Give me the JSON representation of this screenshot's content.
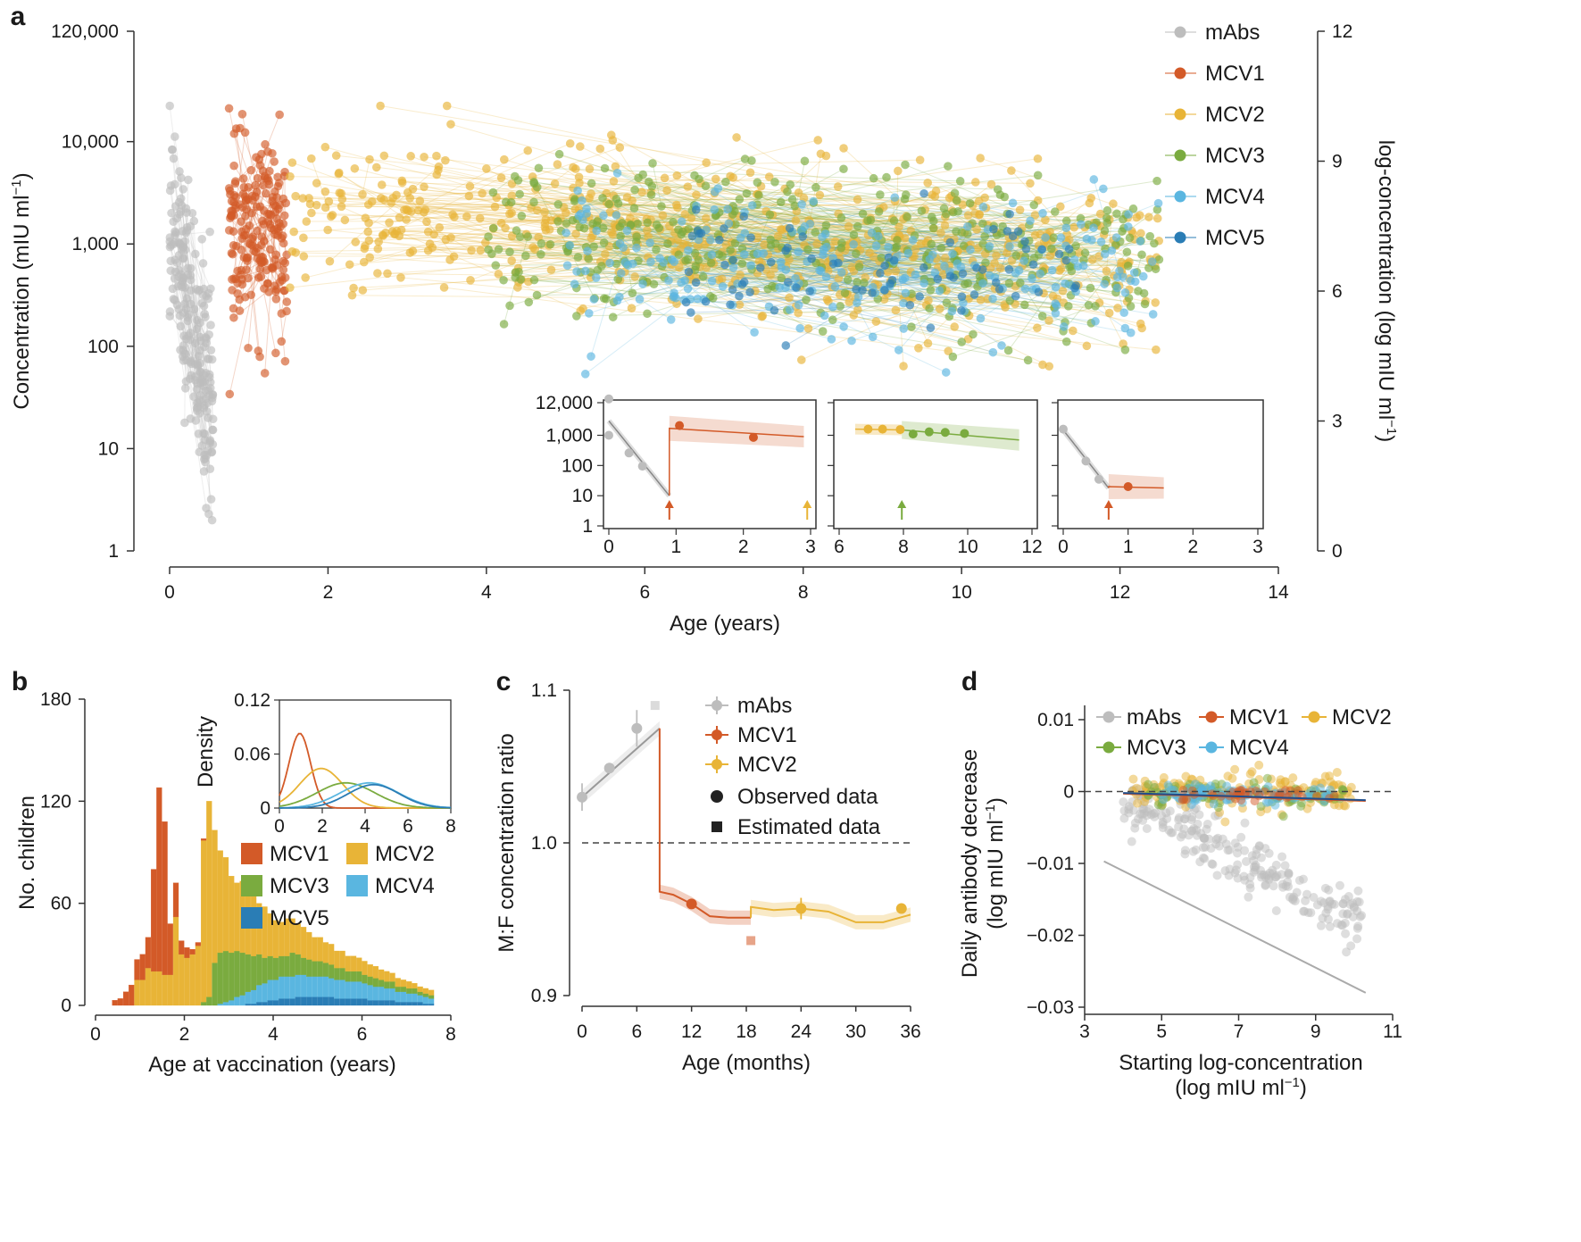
{
  "colors": {
    "mAbs": "#bdbdbd",
    "MCV1": "#d35a28",
    "MCV2": "#e8b437",
    "MCV3": "#7aab3f",
    "MCV4": "#5ab6e0",
    "MCV5": "#2a7db5",
    "axis": "#333333"
  },
  "chart_data": [
    {
      "id": "a",
      "panel_label": "a",
      "type": "scatter",
      "xlabel": "Age (years)",
      "ylabel": "Concentration (mIU ml",
      "ylabel_sup": "−1",
      "ylabel_tail": ")",
      "y2label": "log-concentration (log mIU ml",
      "y2label_sup": "−1",
      "y2label_tail": ")",
      "xlim": [
        0,
        14
      ],
      "xticks": [
        "0",
        "2",
        "4",
        "6",
        "8",
        "10",
        "12",
        "14"
      ],
      "yscale": "log",
      "ylim": [
        1,
        120000
      ],
      "yticks": [
        {
          "v": 1,
          "label": "1"
        },
        {
          "v": 10,
          "label": "10"
        },
        {
          "v": 100,
          "label": "100"
        },
        {
          "v": 1000,
          "label": "1,000"
        },
        {
          "v": 10000,
          "label": "10,000"
        },
        {
          "v": 120000,
          "label": "120,000"
        }
      ],
      "y2ticks": [
        {
          "v": 0,
          "label": "0"
        },
        {
          "v": 3,
          "label": "3"
        },
        {
          "v": 6,
          "label": "6"
        },
        {
          "v": 9,
          "label": "9"
        },
        {
          "v": 12,
          "label": "12"
        }
      ],
      "legend": [
        "mAbs",
        "MCV1",
        "MCV2",
        "MCV3",
        "MCV4",
        "MCV5"
      ],
      "series": [
        {
          "name": "mAbs",
          "x_range": [
            0,
            0.55
          ],
          "log10_center": [
            3.2,
            1.4
          ],
          "log10_spread": 0.55,
          "n": 220
        },
        {
          "name": "MCV1",
          "x_range": [
            0.75,
            1.5
          ],
          "log10_center": [
            3.1,
            3.0
          ],
          "log10_spread": 0.45,
          "n": 200
        },
        {
          "name": "MCV2",
          "x_range": [
            1.5,
            12.5
          ],
          "log10_center": [
            3.3,
            2.8
          ],
          "log10_spread": 0.4,
          "n": 620
        },
        {
          "name": "MCV3",
          "x_range": [
            4.0,
            12.5
          ],
          "log10_center": [
            3.1,
            2.8
          ],
          "log10_spread": 0.38,
          "n": 380
        },
        {
          "name": "MCV4",
          "x_range": [
            5.0,
            12.5
          ],
          "log10_center": [
            2.9,
            2.7
          ],
          "log10_spread": 0.35,
          "n": 230
        },
        {
          "name": "MCV5",
          "x_range": [
            6.5,
            11.5
          ],
          "log10_center": [
            2.8,
            2.6
          ],
          "log10_spread": 0.3,
          "n": 80
        }
      ],
      "insets": [
        {
          "xticks": [
            "0",
            "1",
            "2",
            "3"
          ],
          "xlim": [
            0,
            3
          ],
          "yticks": [
            "1",
            "10",
            "100",
            "1,000",
            "12,000"
          ],
          "points": [
            {
              "s": "mAbs",
              "x": 0,
              "y": 16000
            },
            {
              "s": "mAbs",
              "x": 0,
              "y": 1000
            },
            {
              "s": "mAbs",
              "x": 0.3,
              "y": 260
            },
            {
              "s": "mAbs",
              "x": 0.5,
              "y": 95
            },
            {
              "s": "MCV1",
              "x": 1.05,
              "y": 2100
            },
            {
              "s": "MCV1",
              "x": 2.15,
              "y": 850
            }
          ],
          "arrows": [
            {
              "s": "MCV1",
              "x": 0.9
            },
            {
              "s": "MCV2",
              "x": 2.95
            }
          ]
        },
        {
          "xticks": [
            "6",
            "8",
            "10",
            "12"
          ],
          "xlim": [
            6,
            12
          ],
          "points": [
            {
              "s": "MCV2",
              "x": 6.9,
              "y": 1600
            },
            {
              "s": "MCV2",
              "x": 7.35,
              "y": 1600
            },
            {
              "s": "MCV2",
              "x": 7.9,
              "y": 1550
            },
            {
              "s": "MCV3",
              "x": 8.3,
              "y": 1100
            },
            {
              "s": "MCV3",
              "x": 8.8,
              "y": 1300
            },
            {
              "s": "MCV3",
              "x": 9.3,
              "y": 1250
            },
            {
              "s": "MCV3",
              "x": 9.9,
              "y": 1150
            }
          ],
          "arrows": [
            {
              "s": "MCV3",
              "x": 7.95
            }
          ]
        },
        {
          "xticks": [
            "0",
            "1",
            "2",
            "3"
          ],
          "xlim": [
            0,
            3
          ],
          "points": [
            {
              "s": "mAbs",
              "x": 0,
              "y": 1600
            },
            {
              "s": "mAbs",
              "x": 0.35,
              "y": 140
            },
            {
              "s": "mAbs",
              "x": 0.55,
              "y": 35
            },
            {
              "s": "MCV1",
              "x": 1.0,
              "y": 20
            }
          ],
          "arrows": [
            {
              "s": "MCV1",
              "x": 0.7
            }
          ]
        }
      ]
    },
    {
      "id": "b",
      "panel_label": "b",
      "type": "bar",
      "stacked": true,
      "xlabel": "Age at vaccination (years)",
      "ylabel": "No. children",
      "xlim": [
        0,
        8
      ],
      "ylim": [
        0,
        180
      ],
      "xticks": [
        "0",
        "2",
        "4",
        "6",
        "8"
      ],
      "yticks": [
        "0",
        "60",
        "120",
        "180"
      ],
      "legend": [
        "MCV1",
        "MCV2",
        "MCV3",
        "MCV4",
        "MCV5"
      ],
      "bin_width": 0.125,
      "bin_start": 0.375,
      "series": [
        {
          "name": "MCV1",
          "values": [
            3,
            4,
            8,
            12,
            12,
            15,
            18,
            60,
            108,
            90,
            30,
            20,
            8,
            6,
            3,
            2,
            1
          ]
        },
        {
          "name": "MCV2",
          "values": [
            0,
            0,
            0,
            0,
            15,
            15,
            22,
            20,
            20,
            18,
            18,
            52,
            30,
            28,
            30,
            35,
            95,
            115,
            78,
            60,
            55,
            45,
            40,
            42,
            38,
            35,
            30,
            30,
            25,
            22,
            20,
            22,
            20,
            18,
            18,
            16,
            14,
            14,
            12,
            12,
            10,
            10,
            9,
            9,
            8,
            8,
            7,
            7,
            6,
            6,
            5,
            5,
            4,
            4,
            3,
            3,
            3,
            3
          ]
        },
        {
          "name": "MCV3",
          "values": [
            0,
            0,
            0,
            0,
            0,
            0,
            0,
            0,
            0,
            0,
            0,
            0,
            0,
            0,
            0,
            0,
            2,
            5,
            25,
            30,
            30,
            28,
            27,
            25,
            22,
            20,
            18,
            15,
            14,
            13,
            12,
            12,
            14,
            12,
            10,
            10,
            9,
            9,
            8,
            8,
            7,
            7,
            6,
            6,
            6,
            5,
            5,
            5,
            4,
            4,
            4,
            3,
            3,
            3,
            3,
            2,
            2,
            2
          ]
        },
        {
          "name": "MCV4",
          "values": [
            0,
            0,
            0,
            0,
            0,
            0,
            0,
            0,
            0,
            0,
            0,
            0,
            0,
            0,
            0,
            0,
            0,
            0,
            0,
            1,
            2,
            3,
            5,
            6,
            7,
            8,
            10,
            11,
            12,
            12,
            13,
            13,
            13,
            13,
            13,
            12,
            12,
            12,
            12,
            11,
            11,
            11,
            10,
            10,
            10,
            9,
            9,
            8,
            8,
            7,
            7,
            6,
            6,
            5,
            5,
            4,
            4,
            3
          ]
        },
        {
          "name": "MCV5",
          "values": [
            0,
            0,
            0,
            0,
            0,
            0,
            0,
            0,
            0,
            0,
            0,
            0,
            0,
            0,
            0,
            0,
            0,
            0,
            0,
            0,
            0,
            0,
            0,
            0,
            1,
            1,
            2,
            2,
            3,
            3,
            4,
            4,
            4,
            5,
            5,
            5,
            5,
            5,
            5,
            5,
            4,
            4,
            4,
            4,
            4,
            4,
            3,
            3,
            3,
            3,
            3,
            2,
            2,
            2,
            2,
            2,
            1,
            1
          ]
        }
      ],
      "inset": {
        "type": "line",
        "ylabel": "Density",
        "xlim": [
          0,
          8
        ],
        "ylim": [
          0,
          0.12
        ],
        "xticks": [
          "0",
          "2",
          "4",
          "6",
          "8"
        ],
        "yticks": [
          "0",
          "0.06",
          "0.12"
        ],
        "series": [
          {
            "name": "MCV1",
            "peak_x": 0.95,
            "peak_y": 0.083,
            "sd": 0.5
          },
          {
            "name": "MCV2",
            "peak_x": 1.95,
            "peak_y": 0.044,
            "sd": 1.0
          },
          {
            "name": "MCV3",
            "peak_x": 3.1,
            "peak_y": 0.028,
            "sd": 1.35
          },
          {
            "name": "MCV4",
            "peak_x": 4.2,
            "peak_y": 0.028,
            "sd": 1.35
          },
          {
            "name": "MCV5",
            "peak_x": 4.4,
            "peak_y": 0.026,
            "sd": 1.2
          }
        ]
      }
    },
    {
      "id": "c",
      "panel_label": "c",
      "type": "line",
      "xlabel": "Age (months)",
      "ylabel": "M:F concentration ratio",
      "xlim": [
        0,
        36
      ],
      "ylim": [
        0.9,
        1.1
      ],
      "xticks": [
        "0",
        "6",
        "12",
        "18",
        "24",
        "30",
        "36"
      ],
      "yticks": [
        "0.9",
        "1.0",
        "1.1"
      ],
      "reference_line": 1.0,
      "legend": [
        "mAbs",
        "MCV1",
        "MCV2"
      ],
      "legend_extra": [
        "Observed data",
        "Estimated data"
      ],
      "observed": [
        {
          "s": "mAbs",
          "x": 0,
          "y": 1.03,
          "err": 0.009
        },
        {
          "s": "mAbs",
          "x": 3,
          "y": 1.049,
          "err": 0.003
        },
        {
          "s": "mAbs",
          "x": 6,
          "y": 1.075,
          "err": 0.012
        },
        {
          "s": "MCV1",
          "x": 12,
          "y": 0.96,
          "err": 0.0
        },
        {
          "s": "MCV2",
          "x": 24,
          "y": 0.957,
          "err": 0.007
        },
        {
          "s": "MCV2",
          "x": 35,
          "y": 0.957,
          "err": 0.0
        }
      ],
      "estimated": [
        {
          "s": "mAbs",
          "x": 8,
          "y": 1.09
        },
        {
          "s": "MCV1",
          "x": 18.5,
          "y": 0.936
        }
      ],
      "lines": [
        {
          "s": "mAbs",
          "x": [
            0,
            8.5
          ],
          "y": [
            1.03,
            1.075
          ]
        },
        {
          "s": "MCV1",
          "x": [
            8.5,
            8.5,
            10,
            12,
            14,
            16,
            18.5
          ],
          "y": [
            1.075,
            0.968,
            0.966,
            0.96,
            0.952,
            0.951,
            0.951
          ]
        },
        {
          "s": "MCV2",
          "x": [
            18.5,
            18.5,
            21,
            24,
            27,
            30,
            33,
            36
          ],
          "y": [
            0.951,
            0.958,
            0.956,
            0.957,
            0.955,
            0.948,
            0.948,
            0.953
          ]
        }
      ]
    },
    {
      "id": "d",
      "panel_label": "d",
      "type": "scatter",
      "xlabel": "Starting log-concentration",
      "xlabel2": "(log mIU ml",
      "xlabel2_sup": "−1",
      "xlabel2_tail": ")",
      "ylabel": "Daily antibody decrease",
      "ylabel2": "(log mIU ml",
      "ylabel2_sup": "−1",
      "ylabel2_tail": ")",
      "xlim": [
        3,
        11
      ],
      "ylim": [
        -0.03,
        0.01
      ],
      "xticks": [
        "3",
        "5",
        "7",
        "9",
        "11"
      ],
      "yticks": [
        "−0.03",
        "−0.02",
        "−0.01",
        "0",
        "0.01"
      ],
      "reference_line": 0,
      "legend": [
        "mAbs",
        "MCV1",
        "MCV2",
        "MCV3",
        "MCV4"
      ],
      "fits": [
        {
          "s": "mAbs",
          "x": [
            3.5,
            10.3
          ],
          "y": [
            -0.0097,
            -0.028
          ]
        },
        {
          "s": "MCV1",
          "x": [
            4.0,
            10.3
          ],
          "y": [
            -0.0003,
            -0.0013
          ]
        },
        {
          "s": "MCV4",
          "x": [
            4.0,
            10.3
          ],
          "y": [
            -0.0002,
            -0.0012
          ]
        }
      ],
      "clusters": [
        {
          "s": "mAbs",
          "x_range": [
            4.0,
            10.2
          ],
          "slope": -0.0028,
          "intercept": 0.0004,
          "spread": 0.0022,
          "n": 230
        },
        {
          "s": "MCV2",
          "x_range": [
            4.2,
            10.0
          ],
          "slope": -0.0001,
          "intercept": 0.0,
          "spread": 0.0013,
          "n": 140
        },
        {
          "s": "MCV3",
          "x_range": [
            4.5,
            9.8
          ],
          "slope": -0.0001,
          "intercept": 0.0,
          "spread": 0.0009,
          "n": 90
        },
        {
          "s": "MCV4",
          "x_range": [
            5.0,
            9.5
          ],
          "slope": -0.0001,
          "intercept": 0.0,
          "spread": 0.0006,
          "n": 80
        },
        {
          "s": "MCV1",
          "x_range": [
            5.5,
            9.5
          ],
          "slope": -0.0001,
          "intercept": 0.0,
          "spread": 0.0005,
          "n": 40
        }
      ]
    }
  ]
}
